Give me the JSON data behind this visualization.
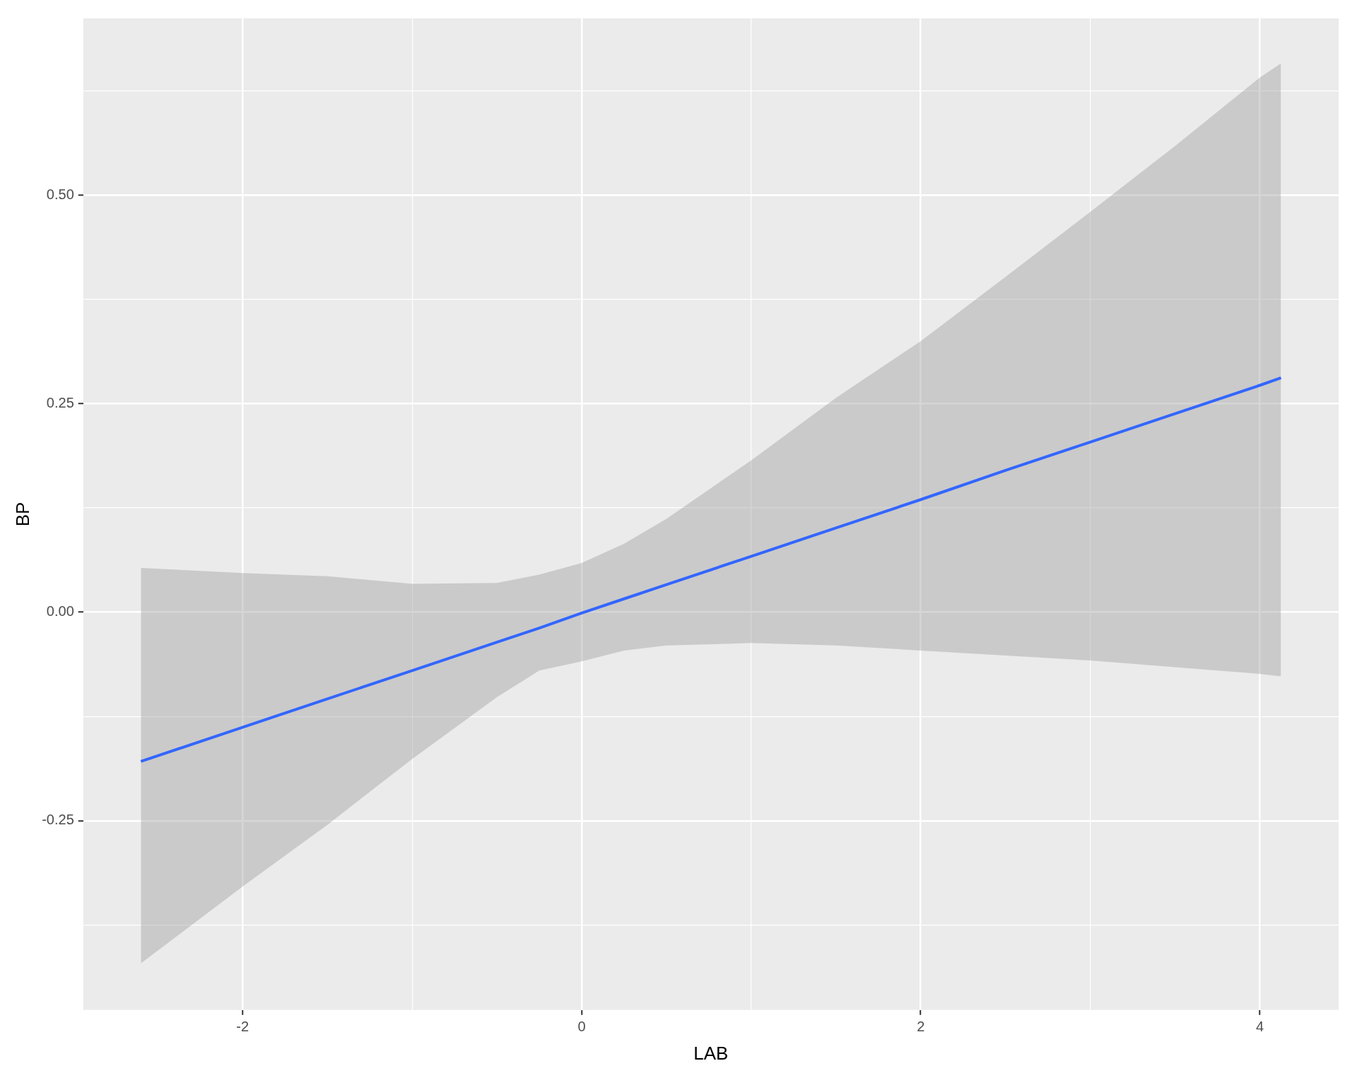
{
  "chart_data": {
    "type": "line",
    "xlabel": "LAB",
    "ylabel": "BP",
    "xlim": [
      -2.94,
      4.465
    ],
    "ylim": [
      -0.477,
      0.712
    ],
    "xticks": [
      {
        "value": -2,
        "label": "-2"
      },
      {
        "value": -1,
        "label": null
      },
      {
        "value": 0,
        "label": "0"
      },
      {
        "value": 1,
        "label": null
      },
      {
        "value": 2,
        "label": "2"
      },
      {
        "value": 3,
        "label": null
      },
      {
        "value": 4,
        "label": "4"
      }
    ],
    "yticks": [
      {
        "value": -0.375,
        "label": null
      },
      {
        "value": -0.25,
        "label": "-0.25"
      },
      {
        "value": -0.125,
        "label": null
      },
      {
        "value": 0,
        "label": "0.00"
      },
      {
        "value": 0.125,
        "label": null
      },
      {
        "value": 0.25,
        "label": "0.25"
      },
      {
        "value": 0.375,
        "label": null
      },
      {
        "value": 0.5,
        "label": "0.50"
      },
      {
        "value": 0.625,
        "label": null
      }
    ],
    "grid": true,
    "legend": false,
    "marker": "none",
    "line_style": "solid",
    "series": [
      {
        "color": "#3366ff",
        "x": [
          -2.6,
          -2,
          -1.5,
          -1,
          -0.5,
          -0.25,
          0,
          0.25,
          0.5,
          1,
          1.5,
          2,
          2.5,
          3,
          3.5,
          4,
          4.125
        ],
        "values": [
          -0.179,
          -0.138,
          -0.104,
          -0.07,
          -0.036,
          -0.019,
          -0.001,
          0.016,
          0.033,
          0.067,
          0.101,
          0.135,
          0.17,
          0.204,
          0.238,
          0.272,
          0.281
        ],
        "lower": [
          -0.421,
          -0.329,
          -0.255,
          -0.176,
          -0.102,
          -0.07,
          -0.059,
          -0.046,
          -0.04,
          -0.037,
          -0.04,
          -0.046,
          -0.052,
          -0.058,
          -0.066,
          -0.074,
          -0.077
        ],
        "upper": [
          0.053,
          0.047,
          0.043,
          0.034,
          0.035,
          0.045,
          0.059,
          0.082,
          0.112,
          0.182,
          0.257,
          0.325,
          0.402,
          0.48,
          0.559,
          0.641,
          0.658
        ]
      }
    ]
  }
}
